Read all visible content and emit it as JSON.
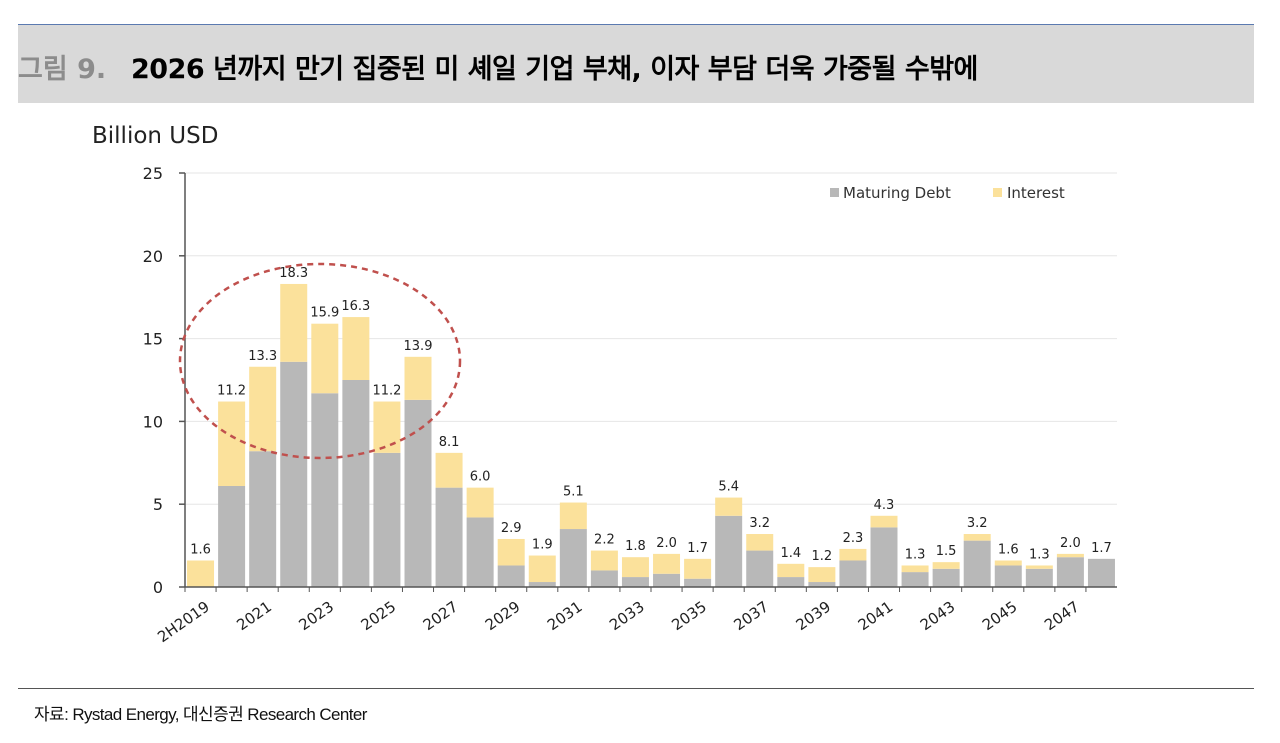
{
  "header": {
    "figure_label": "그림 9.",
    "title": "2026 년까지 만기 집중된 미 셰일 기업 부채, 이자 부담 더욱 가중될 수밖에"
  },
  "footer": {
    "source": "자료: Rystad Energy, 대신증권 Research Center"
  },
  "colors": {
    "maturing": "#b8b8b8",
    "interest": "#fbe19b",
    "circle": "#c0504d"
  },
  "chart_data": {
    "type": "bar",
    "stacked": true,
    "ylabel": "Billion USD",
    "ylim": [
      0,
      25
    ],
    "yticks": [
      "0",
      "5",
      "10",
      "15",
      "20",
      "25"
    ],
    "legend_position": "top-right",
    "grid": true,
    "categories": [
      "2H2019",
      "2020",
      "2021",
      "2022",
      "2023",
      "2024",
      "2025",
      "2026",
      "2027",
      "2028",
      "2029",
      "2030",
      "2031",
      "2032",
      "2033",
      "2034",
      "2035",
      "2036",
      "2037",
      "2038",
      "2039",
      "2040",
      "2041",
      "2042",
      "2043",
      "2044",
      "2045",
      "2046",
      "2047",
      "2048"
    ],
    "xtick_labels": [
      "2H2019",
      "",
      "2021",
      "",
      "2023",
      "",
      "2025",
      "",
      "2027",
      "",
      "2029",
      "",
      "2031",
      "",
      "2033",
      "",
      "2035",
      "",
      "2037",
      "",
      "2039",
      "",
      "2041",
      "",
      "2043",
      "",
      "2045",
      "",
      "2047",
      ""
    ],
    "series": [
      {
        "name": "Maturing Debt",
        "values": [
          0,
          6.1,
          8.2,
          13.6,
          11.7,
          12.5,
          8.1,
          11.3,
          6.0,
          4.2,
          1.3,
          0.3,
          3.5,
          1.0,
          0.6,
          0.8,
          0.5,
          4.3,
          2.2,
          0.6,
          0.3,
          1.6,
          3.6,
          0.9,
          1.1,
          2.8,
          1.3,
          1.1,
          1.8,
          1.7
        ]
      },
      {
        "name": "Interest",
        "values": [
          1.6,
          5.1,
          5.1,
          4.7,
          4.2,
          3.8,
          3.1,
          2.6,
          2.1,
          1.8,
          1.6,
          1.6,
          1.6,
          1.2,
          1.2,
          1.2,
          1.2,
          1.1,
          1.0,
          0.8,
          0.9,
          0.7,
          0.7,
          0.4,
          0.4,
          0.4,
          0.3,
          0.2,
          0.2,
          0.0
        ]
      }
    ],
    "totals": [
      1.6,
      11.2,
      13.3,
      18.3,
      15.9,
      16.3,
      11.2,
      13.9,
      8.1,
      6.0,
      2.9,
      1.9,
      5.1,
      2.2,
      1.8,
      2.0,
      1.7,
      5.4,
      3.2,
      1.4,
      1.2,
      2.3,
      4.3,
      1.3,
      1.5,
      3.2,
      1.6,
      1.3,
      2.0,
      1.7
    ],
    "total_labels": [
      "1.6",
      "11.2",
      "13.3",
      "18.3",
      "15.9",
      "16.3",
      "11.2",
      "13.9",
      "8.1",
      "6.0",
      "2.9",
      "1.9",
      "5.1",
      "2.2",
      "1.8",
      "2.0",
      "1.7",
      "5.4",
      "3.2",
      "1.4",
      "1.2",
      "2.3",
      "4.3",
      "1.3",
      "1.5",
      "3.2",
      "1.6",
      "1.3",
      "2.0",
      "1.7"
    ],
    "annotation": "dashed ellipse highlighting 2021–2026 peak"
  }
}
